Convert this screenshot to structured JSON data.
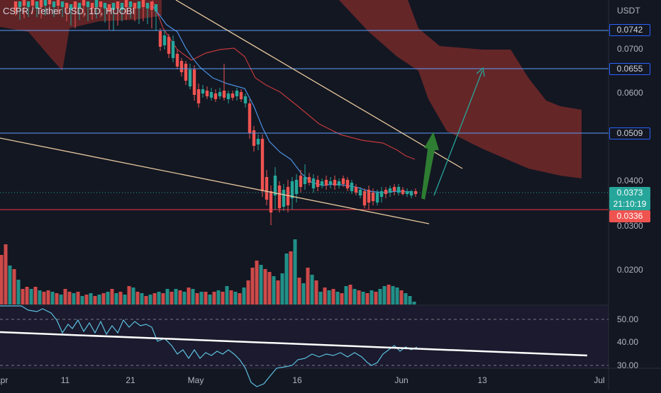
{
  "symbol": {
    "title": "CSPR / Tether USD, 1D, HUOBI"
  },
  "price_axis": {
    "currency": "USDT",
    "labels": [
      "0.0700",
      "0.0600",
      "0.0400",
      "0.0300",
      "0.0200"
    ]
  },
  "price_tags": {
    "level_1": "0.0742",
    "level_2": "0.0655",
    "level_3": "0.0509",
    "last_price": "0.0373",
    "countdown": "21:10:19",
    "support": "0.0336"
  },
  "rsi_axis": {
    "labels": [
      "50.00",
      "40.00",
      "30.00"
    ]
  },
  "time_axis": {
    "labels": [
      "Apr",
      "11",
      "21",
      "May",
      "16",
      "Jun",
      "13",
      "Jul"
    ]
  },
  "colors": {
    "background": "#131722",
    "up": "#26a69a",
    "down": "#ef5350",
    "level_line": "#5b9cf6",
    "support_line": "#f23645",
    "cloud": "#7b2a2a",
    "trendline": "#e6c79c",
    "ma_blue": "#4a90e2",
    "ma_red": "#c0393b",
    "arrow": "#2e7d32",
    "rsi_line": "#5bc0de",
    "rsi_trend": "#ffffff"
  },
  "icons": {
    "arrow": "arrow-up-icon"
  }
}
